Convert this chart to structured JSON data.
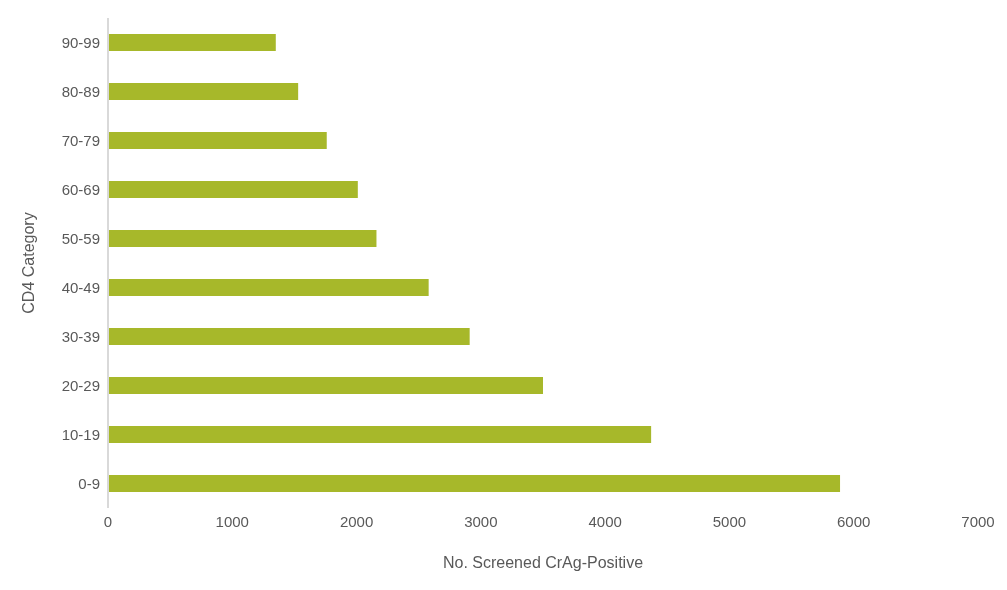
{
  "chart_data": {
    "type": "bar",
    "orientation": "horizontal",
    "xlabel": "No. Screened CrAg-Positive",
    "ylabel": "CD4 Category",
    "categories": [
      "90-99",
      "80-89",
      "70-79",
      "60-69",
      "50-59",
      "40-49",
      "30-39",
      "20-29",
      "10-19",
      "0-9"
    ],
    "values": [
      1350,
      1530,
      1760,
      2010,
      2160,
      2580,
      2910,
      3500,
      4370,
      5890
    ],
    "color": "#a7b82a",
    "xlim": [
      0,
      7000
    ],
    "xticks": [
      0,
      1000,
      2000,
      3000,
      4000,
      5000,
      6000,
      7000
    ],
    "grid": false,
    "legend": false
  }
}
